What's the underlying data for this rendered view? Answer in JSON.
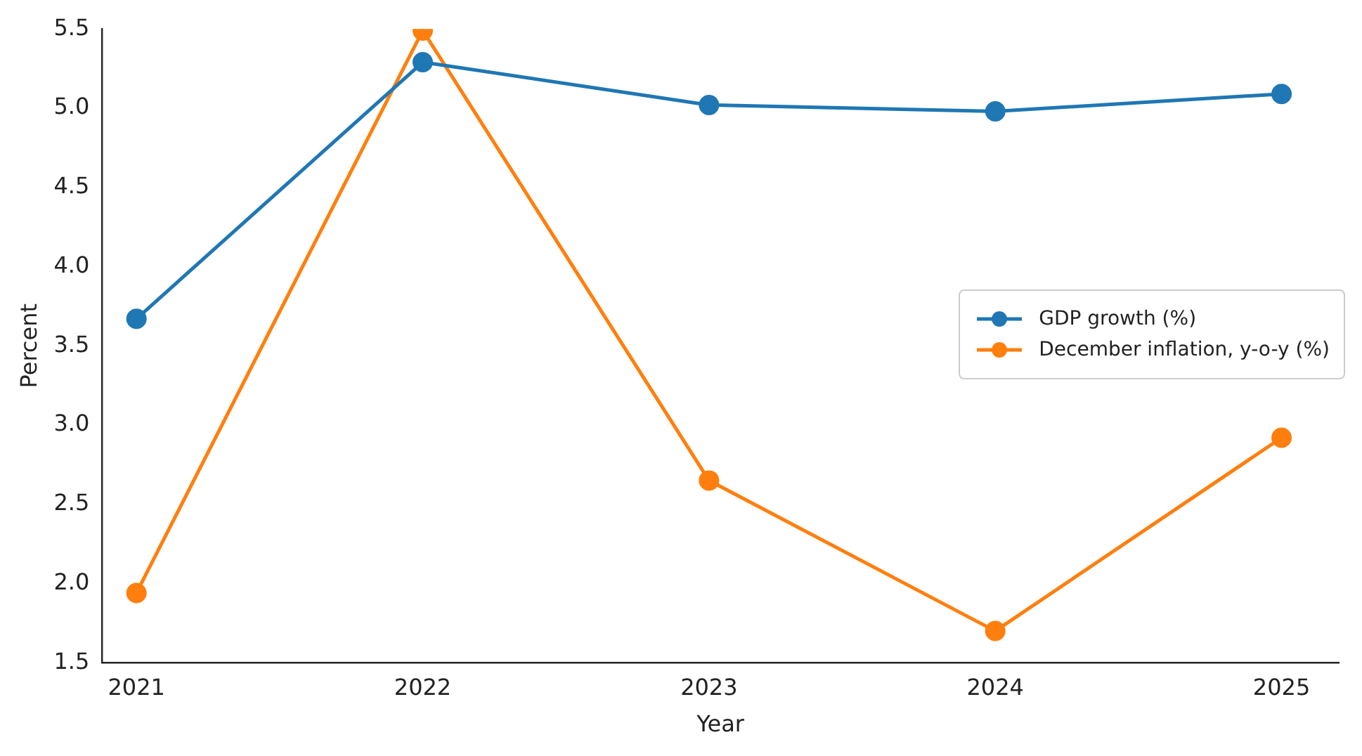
{
  "chart_data": {
    "type": "line",
    "xlabel": "Year",
    "ylabel": "Percent",
    "x": [
      2021,
      2022,
      2023,
      2024,
      2025
    ],
    "xlim": [
      2020.88,
      2025.2
    ],
    "xticks": [
      2021,
      2022,
      2023,
      2024,
      2025
    ],
    "ylim": [
      1.5,
      5.5
    ],
    "yticks": [
      {
        "value": 1.5,
        "label": "1.5"
      },
      {
        "value": 2,
        "label": "2.0"
      },
      {
        "value": 2.5,
        "label": "2.5"
      },
      {
        "value": 3,
        "label": "3.0"
      },
      {
        "value": 3.5,
        "label": "3.5"
      },
      {
        "value": 4,
        "label": "4.0"
      },
      {
        "value": 4.5,
        "label": "4.5"
      },
      {
        "value": 5,
        "label": "5.0"
      },
      {
        "value": 5.5,
        "label": "5.5"
      }
    ],
    "series": [
      {
        "name": "GDP growth (%)",
        "color": "#1f77b4",
        "values": [
          3.67,
          5.29,
          5.02,
          4.98,
          5.09
        ]
      },
      {
        "name": "December inflation, y-o-y (%)",
        "color": "#ff7f0e",
        "values": [
          1.94,
          5.49,
          2.65,
          1.7,
          2.92
        ]
      }
    ],
    "marker": "circle",
    "line_style": "solid",
    "grid": false,
    "legend": "right"
  }
}
